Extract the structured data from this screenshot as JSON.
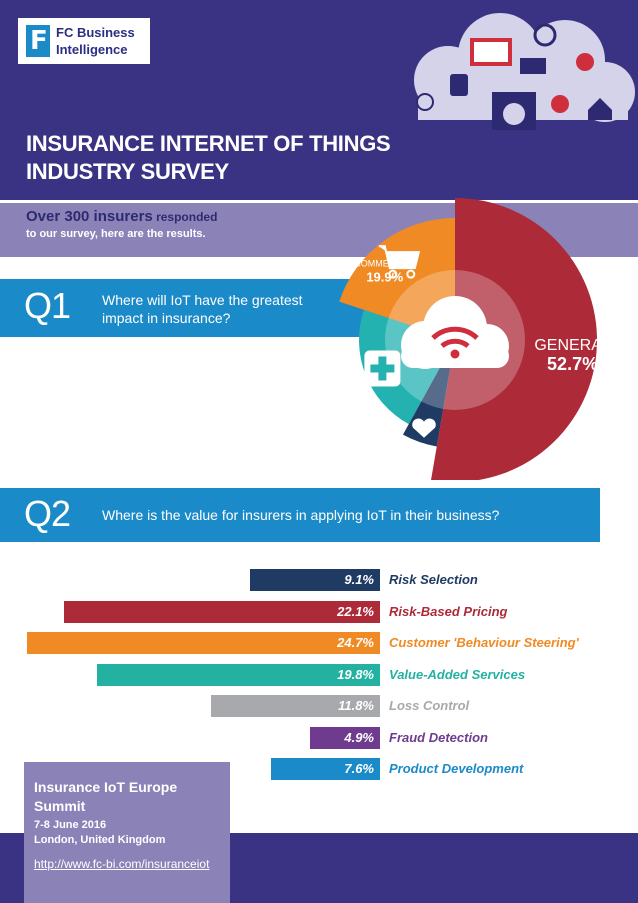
{
  "logo": {
    "line1": "FC Business",
    "line2": "Intelligence",
    "mark": "F"
  },
  "title": {
    "line1": "INSURANCE INTERNET OF THINGS",
    "line2": "INDUSTRY SURVEY"
  },
  "intro": {
    "bold": "Over 300 insurers",
    "rest": " responded",
    "line2": "to our survey, here are the results."
  },
  "q1": {
    "num": "Q1",
    "text1": "Where will IoT have the greatest",
    "text2": "impact in insurance?"
  },
  "q2": {
    "num": "Q2",
    "text": "Where is the value for insurers in applying IoT in their business?"
  },
  "summit": {
    "title": "Insurance IoT Europe Summit",
    "date": "7-8 June 2016",
    "location": "London, United Kingdom",
    "url": "http://www.fc-bi.com/insuranceiot"
  },
  "icons": {
    "header": "iot-devices-cloud-icon",
    "center": "wifi-cloud-icon",
    "commercial": "shopping-cart-icon",
    "health": "medical-cross-icon",
    "life": "heart-icon"
  },
  "chart_data": [
    {
      "type": "pie",
      "categories": [
        "GENERAL",
        "LIFE",
        "HEALTH",
        "COMMERCIAL"
      ],
      "values": [
        52.7,
        5.3,
        22.1,
        19.9
      ],
      "value_labels": [
        "52.7%",
        "5.3%",
        "22.1%",
        "19.9%"
      ],
      "colors": [
        "#ad2a38",
        "#1f3a63",
        "#23b2b0",
        "#f08a24"
      ]
    },
    {
      "type": "bar",
      "categories": [
        "Risk Selection",
        "Risk-Based Pricing",
        "Customer 'Behaviour Steering'",
        "Value-Added Services",
        "Loss Control",
        "Fraud Detection",
        "Product Development"
      ],
      "values": [
        9.1,
        22.1,
        24.7,
        19.8,
        11.8,
        4.9,
        7.6
      ],
      "value_labels": [
        "9.1%",
        "22.1%",
        "24.7%",
        "19.8%",
        "11.8%",
        "4.9%",
        "7.6%"
      ],
      "colors": [
        "#1f3a63",
        "#ad2a38",
        "#f08a24",
        "#23b2a2",
        "#a7a9ac",
        "#6e3b8f",
        "#1b8ac8"
      ]
    }
  ]
}
